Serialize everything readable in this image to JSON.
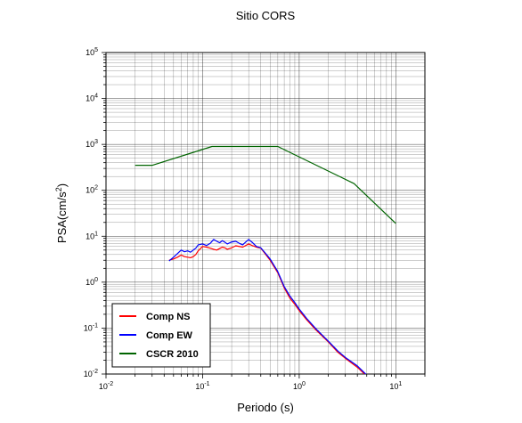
{
  "chart_data": {
    "type": "line",
    "title": "Sitio CORS",
    "xlabel": "Periodo (s)",
    "ylabel": "PSA(cm/s2)",
    "xscale": "log",
    "yscale": "log",
    "xlim": [
      0.01,
      20
    ],
    "ylim": [
      0.01,
      100000
    ],
    "grid": true,
    "legend_position": "bottom-left",
    "x_ticks": [
      {
        "value": 0.01,
        "base": "10",
        "exp": "-2"
      },
      {
        "value": 0.1,
        "base": "10",
        "exp": "-1"
      },
      {
        "value": 1,
        "base": "10",
        "exp": "0"
      },
      {
        "value": 10,
        "base": "10",
        "exp": "1"
      }
    ],
    "y_ticks": [
      {
        "value": 0.01,
        "base": "10",
        "exp": "-2"
      },
      {
        "value": 0.1,
        "base": "10",
        "exp": "-1"
      },
      {
        "value": 1,
        "base": "10",
        "exp": "0"
      },
      {
        "value": 10,
        "base": "10",
        "exp": "1"
      },
      {
        "value": 100,
        "base": "10",
        "exp": "2"
      },
      {
        "value": 1000,
        "base": "10",
        "exp": "3"
      },
      {
        "value": 10000,
        "base": "10",
        "exp": "4"
      },
      {
        "value": 100000,
        "base": "10",
        "exp": "5"
      }
    ],
    "series": [
      {
        "name": "Comp NS",
        "color": "#ff0000",
        "x": [
          0.045,
          0.05,
          0.055,
          0.06,
          0.065,
          0.07,
          0.075,
          0.08,
          0.085,
          0.09,
          0.1,
          0.11,
          0.12,
          0.13,
          0.14,
          0.15,
          0.16,
          0.17,
          0.18,
          0.2,
          0.22,
          0.24,
          0.26,
          0.28,
          0.3,
          0.33,
          0.36,
          0.4,
          0.45,
          0.5,
          0.6,
          0.7,
          0.8,
          0.9,
          1.0,
          1.2,
          1.5,
          2.0,
          2.5,
          3.0,
          4.0,
          5.0
        ],
        "y": [
          3.0,
          3.2,
          3.5,
          3.9,
          3.6,
          3.5,
          3.4,
          3.6,
          4.0,
          4.8,
          6.0,
          5.8,
          5.5,
          5.2,
          5.0,
          5.4,
          5.8,
          5.6,
          5.2,
          5.6,
          6.2,
          6.0,
          5.8,
          6.3,
          6.8,
          6.2,
          5.8,
          5.5,
          4.0,
          3.0,
          1.6,
          0.75,
          0.45,
          0.33,
          0.24,
          0.15,
          0.09,
          0.05,
          0.03,
          0.022,
          0.014,
          0.009
        ]
      },
      {
        "name": "Comp EW",
        "color": "#0000ff",
        "x": [
          0.045,
          0.05,
          0.055,
          0.06,
          0.065,
          0.07,
          0.075,
          0.08,
          0.085,
          0.09,
          0.1,
          0.11,
          0.12,
          0.13,
          0.14,
          0.15,
          0.16,
          0.17,
          0.18,
          0.2,
          0.22,
          0.24,
          0.26,
          0.28,
          0.3,
          0.33,
          0.36,
          0.4,
          0.45,
          0.5,
          0.6,
          0.7,
          0.8,
          0.9,
          1.0,
          1.2,
          1.5,
          2.0,
          2.5,
          3.0,
          4.0,
          5.0
        ],
        "y": [
          2.9,
          3.5,
          4.2,
          5.0,
          4.6,
          4.8,
          4.5,
          5.0,
          5.5,
          6.5,
          6.8,
          6.3,
          7.0,
          8.5,
          7.8,
          7.2,
          8.0,
          7.4,
          6.8,
          7.5,
          7.8,
          7.0,
          6.5,
          7.5,
          8.5,
          7.2,
          6.0,
          5.6,
          4.2,
          3.2,
          1.7,
          0.8,
          0.5,
          0.36,
          0.26,
          0.16,
          0.095,
          0.052,
          0.032,
          0.023,
          0.015,
          0.0095
        ]
      },
      {
        "name": "CSCR 2010",
        "color": "#006400",
        "x": [
          0.02,
          0.03,
          0.125,
          0.6,
          3.7,
          10
        ],
        "y": [
          350,
          350,
          900,
          900,
          140,
          19
        ]
      }
    ]
  }
}
